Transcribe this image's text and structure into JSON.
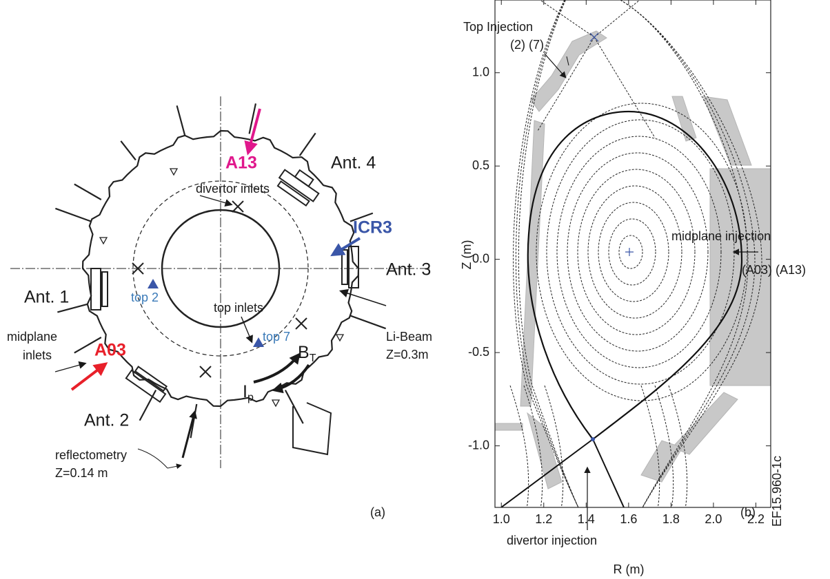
{
  "panel_a": {
    "labels": {
      "divertor_inlets": "divertor inlets",
      "a13": "A13",
      "ant4": "Ant. 4",
      "icr3": "ICR3",
      "ant3": "Ant. 3",
      "ant1": "Ant. 1",
      "top2": "top 2",
      "top_inlets": "top inlets",
      "top7": "top 7",
      "li_beam": "Li-Beam",
      "li_beam_z": "Z=0.3m",
      "midplane": "midplane",
      "inlets": "inlets",
      "a03": "A03",
      "bt": {
        "main": "B",
        "sub": "T"
      },
      "ip": {
        "main": "I",
        "sub": "p"
      },
      "ant2": "Ant. 2",
      "reflectometry": "reflectometry",
      "reflectometry_z": "Z=0.14 m",
      "panel": "(a)"
    }
  },
  "panel_b": {
    "labels": {
      "top_injection": "Top Injection",
      "top_injection_ids": "(2) (7)",
      "midplane_injection": "midplane injection",
      "midplane_injection_ids": "(A03) (A13)",
      "divertor_injection": "divertor injection",
      "panel": "(b)",
      "figure_id": "EF15.960-1c"
    },
    "plot": {
      "xlabel": "R (m)",
      "ylabel": "Z (m)",
      "xlim": [
        0.97,
        2.27
      ],
      "ylim": [
        -1.33,
        1.39
      ],
      "xticks": [
        {
          "value": 1,
          "label": "1.0"
        },
        1.2,
        1.4,
        1.6,
        1.8,
        {
          "value": 2,
          "label": "2.0"
        },
        2.2
      ],
      "yticks": [
        {
          "value": -1,
          "label": "-1.0"
        },
        -0.5,
        {
          "value": 0,
          "label": "0.0"
        },
        0.5,
        {
          "value": 1,
          "label": "1.0"
        }
      ]
    }
  }
}
